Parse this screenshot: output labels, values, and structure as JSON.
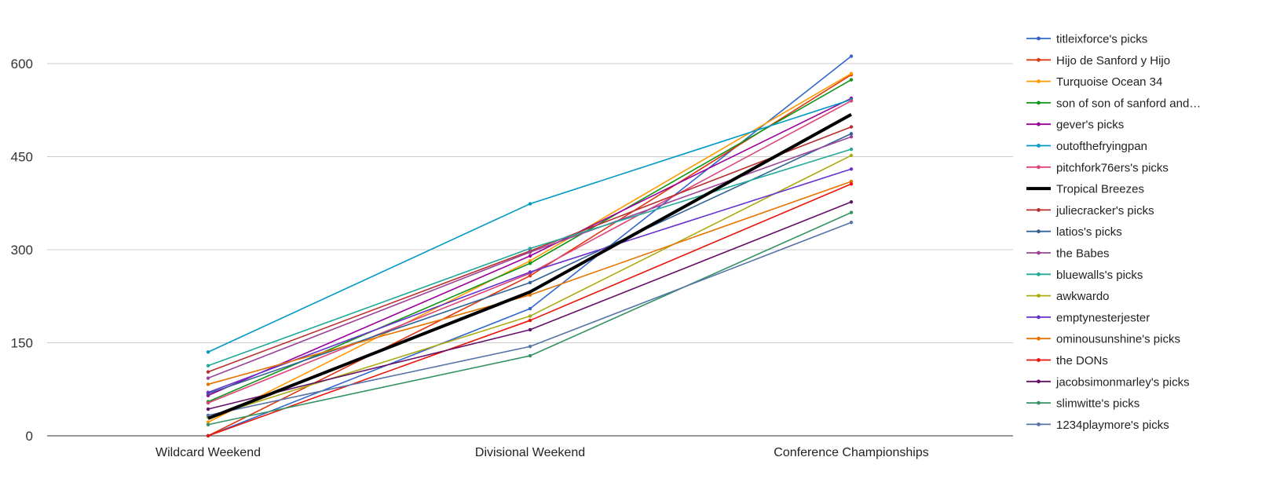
{
  "chart_data": {
    "type": "line",
    "categories": [
      "Wildcard Weekend",
      "Divisional Weekend",
      "Conference Championships"
    ],
    "y_ticks": [
      0,
      150,
      300,
      450,
      600
    ],
    "ylim": [
      0,
      660
    ],
    "grid": true,
    "legend": "right",
    "series": [
      {
        "name": "titleixforce's picks",
        "color": "#3366cc",
        "values": [
          0,
          205,
          612
        ]
      },
      {
        "name": "Hijo de Sanford y Hijo",
        "color": "#dc3912",
        "values": [
          0,
          258,
          582
        ]
      },
      {
        "name": "Turquoise Ocean 34",
        "color": "#ff9900",
        "values": [
          22,
          282,
          584
        ]
      },
      {
        "name": "son of son of sanford and…",
        "color": "#109618",
        "values": [
          55,
          278,
          574
        ]
      },
      {
        "name": "gever's picks",
        "color": "#990099",
        "values": [
          65,
          290,
          544
        ]
      },
      {
        "name": "outofthefryingpan",
        "color": "#0099c6",
        "values": [
          135,
          374,
          542
        ]
      },
      {
        "name": "pitchfork76ers's picks",
        "color": "#dd4477",
        "values": [
          53,
          262,
          540
        ]
      },
      {
        "name": "Tropical Breezes",
        "color": "#000000",
        "values": [
          28,
          232,
          518
        ],
        "bold": true
      },
      {
        "name": "juliecracker's picks",
        "color": "#b82e2e",
        "values": [
          103,
          298,
          498
        ]
      },
      {
        "name": "latios's picks",
        "color": "#316395",
        "values": [
          68,
          247,
          487
        ]
      },
      {
        "name": "the Babes",
        "color": "#994499",
        "values": [
          93,
          296,
          482
        ]
      },
      {
        "name": "bluewalls's picks",
        "color": "#22aa99",
        "values": [
          113,
          302,
          462
        ]
      },
      {
        "name": "awkwardo",
        "color": "#aaaa11",
        "values": [
          30,
          193,
          452
        ]
      },
      {
        "name": "emptynesterjester",
        "color": "#6633cc",
        "values": [
          70,
          264,
          430
        ]
      },
      {
        "name": "ominousunshine's picks",
        "color": "#e67300",
        "values": [
          83,
          227,
          410
        ]
      },
      {
        "name": "the DONs",
        "color": "#e8150c",
        "values": [
          0,
          186,
          406
        ]
      },
      {
        "name": "jacobsimonmarley's picks",
        "color": "#651067",
        "values": [
          43,
          171,
          377
        ]
      },
      {
        "name": "slimwitte's picks",
        "color": "#329262",
        "values": [
          18,
          129,
          360
        ]
      },
      {
        "name": "1234playmore's picks",
        "color": "#5574a6",
        "values": [
          33,
          144,
          344
        ]
      }
    ]
  }
}
